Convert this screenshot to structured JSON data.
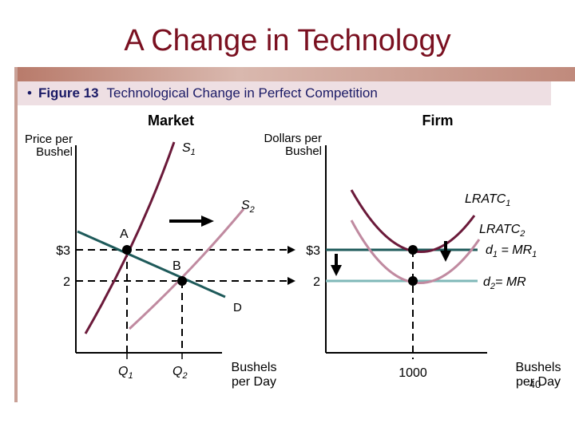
{
  "slide": {
    "title": "A Change in Technology",
    "caption_bullet": "•",
    "caption_figure": "Figure 13",
    "caption_text": "Technological Change in Perfect Competition",
    "page_number": "40"
  },
  "market": {
    "panel_title": "Market",
    "y_axis_label_line1": "Price per",
    "y_axis_label_line2": "Bushel",
    "x_axis_label_line1": "Bushels",
    "x_axis_label_line2": "per Day",
    "supply1_label": "S",
    "supply1_sub": "1",
    "supply2_label": "S",
    "supply2_sub": "2",
    "demand_label": "D",
    "point_a_label": "A",
    "point_b_label": "B",
    "price_high": "$3",
    "price_low": "2",
    "q1_label": "Q",
    "q1_sub": "1",
    "q2_label": "Q",
    "q2_sub": "2"
  },
  "firm": {
    "panel_title": "Firm",
    "y_axis_label_line1": "Dollars per",
    "y_axis_label_line2": "Bushel",
    "x_axis_label_line1": "Bushels",
    "x_axis_label_line2": "per Day",
    "lratc1_label": "LRATC",
    "lratc1_sub": "1",
    "lratc2_label": "LRATC",
    "lratc2_sub": "2",
    "d1_label": "d",
    "d1_sub": "1",
    "d1_suffix": " = MR",
    "d1_suffix_sub": "1",
    "d2_label": "d",
    "d2_sub": "2",
    "d2_suffix": "= MR",
    "price_high": "$3",
    "price_low": "2",
    "quantity_label": "1000"
  },
  "colors": {
    "title": "#7a1020",
    "caption_text": "#1a1a66",
    "caption_bg": "#eedfe3",
    "supply1": "#6b1a3a",
    "supply2": "#c08aa0",
    "demand": "#1e5a5a",
    "lratc1": "#6b1a3a",
    "lratc2": "#c08aa0",
    "d1": "#1e5a5a",
    "d2": "#7fb8b8",
    "axis": "#000000"
  }
}
